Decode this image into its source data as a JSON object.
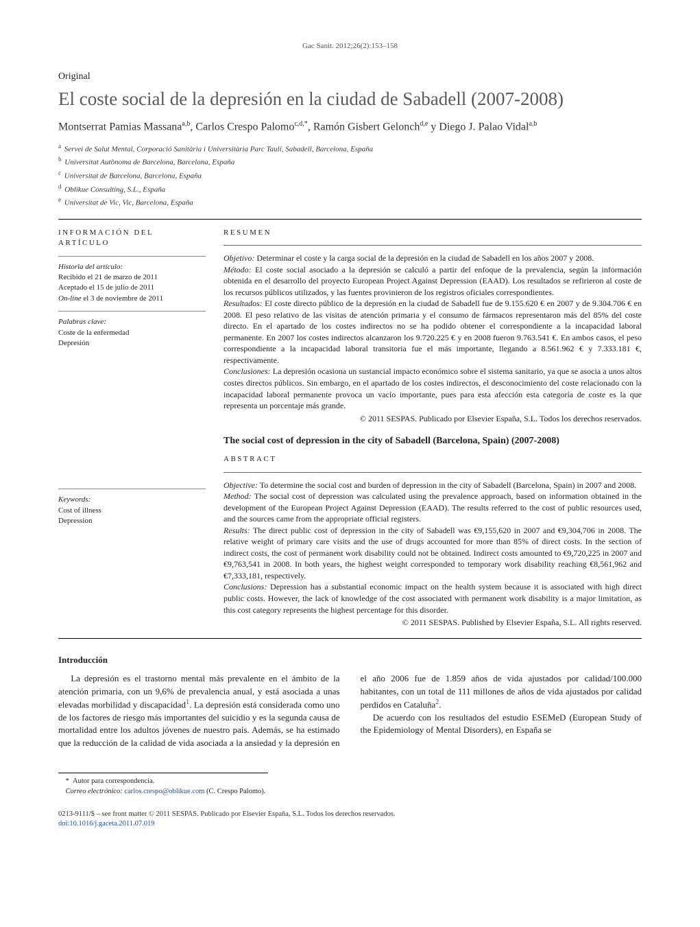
{
  "journal_ref": "Gac Sanit. 2012;26(2):153–158",
  "article_type": "Original",
  "title": "El coste social de la depresión en la ciudad de Sabadell (2007-2008)",
  "authors_html": "Montserrat Pamias Massana<sup>a,b</sup>, Carlos Crespo Palomo<sup>c,d,*</sup>, Ramón Gisbert Gelonch<sup>d,e</sup> y Diego J. Palao Vidal<sup>a,b</sup>",
  "affiliations": [
    {
      "key": "a",
      "text": "Servei de Salut Mental, Corporació Sanitària i Universitària Parc Taulí, Sabadell, Barcelona, España"
    },
    {
      "key": "b",
      "text": "Universitat Autònoma de Barcelona, Barcelona, España"
    },
    {
      "key": "c",
      "text": "Universitat de Barcelona, Barcelona, España"
    },
    {
      "key": "d",
      "text": "Oblikue Consulting, S.L., España"
    },
    {
      "key": "e",
      "text": "Universitat de Vic, Vic, Barcelona, España"
    }
  ],
  "info_heading": "información del artículo",
  "history_heading": "Historia del artículo:",
  "history_lines": [
    "Recibido el 21 de marzo de 2011",
    "Aceptado el 15 de julio de 2011",
    "On-line el 3 de noviembre de 2011"
  ],
  "keywords_es_heading": "Palabras clave:",
  "keywords_es": [
    "Coste de la enfermedad",
    "Depresión"
  ],
  "keywords_en_heading": "Keywords:",
  "keywords_en": [
    "Cost of illness",
    "Depression"
  ],
  "resumen_heading": "resumen",
  "resumen": {
    "objetivo": "Determinar el coste y la carga social de la depresión en la ciudad de Sabadell en los años 2007 y 2008.",
    "metodo": "El coste social asociado a la depresión se calculó a partir del enfoque de la prevalencia, según la información obtenida en el desarrollo del proyecto European Project Against Depression (EAAD). Los resultados se refirieron al coste de los recursos públicos utilizados, y las fuentes provinieron de los registros oficiales correspondientes.",
    "resultados": "El coste directo público de la depresión en la ciudad de Sabadell fue de 9.155.620 € en 2007 y de 9.304.706 € en 2008. El peso relativo de las visitas de atención primaria y el consumo de fármacos representaron más del 85% del coste directo. En el apartado de los costes indirectos no se ha podido obtener el correspondiente a la incapacidad laboral permanente. En 2007 los costes indirectos alcanzaron los 9.720.225 € y en 2008 fueron 9.763.541 €. En ambos casos, el peso correspondiente a la incapacidad laboral transitoria fue el más importante, llegando a 8.561.962 € y 7.333.181 €, respectivamente.",
    "conclusiones": "La depresión ocasiona un sustancial impacto económico sobre el sistema sanitario, ya que se asocia a unos altos costes directos públicos. Sin embargo, en el apartado de los costes indirectos, el desconocimiento del coste relacionado con la incapacidad laboral permanente provoca un vacío importante, pues para esta afección esta categoría de coste es la que representa un porcentaje más grande.",
    "copyright": "© 2011 SESPAS. Publicado por Elsevier España, S.L. Todos los derechos reservados."
  },
  "en_title": "The social cost of depression in the city of Sabadell (Barcelona, Spain) (2007-2008)",
  "abstract_heading": "abstract",
  "abstract": {
    "objective": "To determine the social cost and burden of depression in the city of Sabadell (Barcelona, Spain) in 2007 and 2008.",
    "method": "The social cost of depression was calculated using the prevalence approach, based on information obtained in the development of the European Project Against Depression (EAAD). The results referred to the cost of public resources used, and the sources came from the appropriate official registers.",
    "results": "The direct public cost of depression in the city of Sabadell was €9,155,620 in 2007 and €9,304,706 in 2008. The relative weight of primary care visits and the use of drugs accounted for more than 85% of direct costs. In the section of indirect costs, the cost of permanent work disability could not be obtained. Indirect costs amounted to €9,720,225 in 2007 and €9,763,541 in 2008. In both years, the highest weight corresponded to temporary work disability reaching €8,561,962 and €7,333,181, respectively.",
    "conclusions": "Depression has a substantial economic impact on the health system because it is associated with high direct public costs. However, the lack of knowledge of the cost associated with permanent work disability is a major limitation, as this cost category represents the highest percentage for this disorder.",
    "copyright": "© 2011 SESPAS. Published by Elsevier España, S.L. All rights reserved."
  },
  "labels": {
    "objetivo": "Objetivo:",
    "metodo": "Método:",
    "resultados": "Resultados:",
    "conclusiones": "Conclusiones:",
    "objective": "Objective:",
    "method": "Method:",
    "results": "Results:",
    "conclusions": "Conclusions:"
  },
  "intro_heading": "Introducción",
  "intro_paragraphs": [
    "La depresión es el trastorno mental más prevalente en el ámbito de la atención primaria, con un 9,6% de prevalencia anual, y está asociada a unas elevadas morbilidad y discapacidad¹. La depresión está considerada como uno de los factores de riesgo más importantes del suicidio y es la segunda causa de mortalidad entre los adultos jóvenes de nuestro país. Además, se ha estimado que la reducción de la calidad de vida asociada a la ansiedad y la depresión en el año 2006 fue de 1.859 años de vida ajustados por calidad/100.000 habitantes, con un total de 111 millones de años de vida ajustados por calidad perdidos en Cataluña².",
    "De acuerdo con los resultados del estudio ESEMeD (European Study of the Epidemiology of Mental Disorders), en España se"
  ],
  "correspondence": {
    "mark": "*",
    "text": "Autor para correspondencia.",
    "email_label": "Correo electrónico:",
    "email": "carlos.crespo@oblikue.com",
    "author": "(C. Crespo Palomo)."
  },
  "footer": {
    "line": "0213-9111/$ – see front matter © 2011 SESPAS. Publicado por Elsevier España, S.L. Todos los derechos reservados.",
    "doi": "doi:10.1016/j.gaceta.2011.07.019"
  }
}
